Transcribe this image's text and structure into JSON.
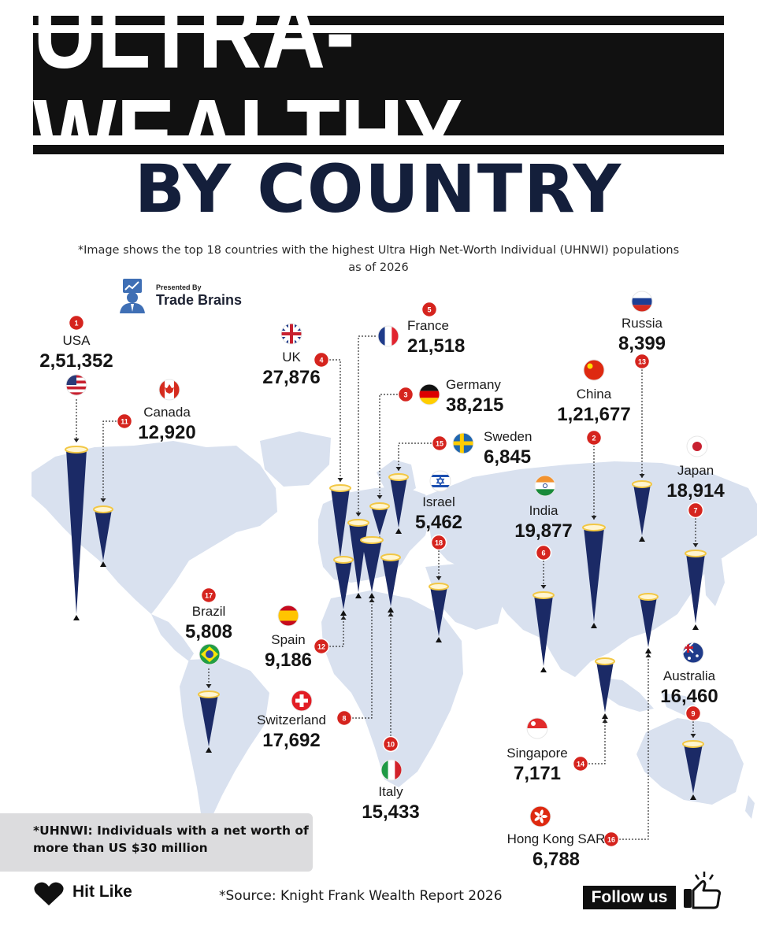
{
  "header": {
    "title": "ULTRA-WEALTHY",
    "subtitle": "BY COUNTRY",
    "note": "*Image shows the top 18 countries with the highest Ultra High Net-Worth Individual (UHNWI) populations as of 2026"
  },
  "brand": {
    "presented_by": "Presented By",
    "name": "Trade Brains"
  },
  "footer": {
    "definition": "*UHNWI: Individuals with a net worth of more than US $30 million",
    "hit_like": "Hit Like",
    "source": "*Source: Knight Frank Wealth Report 2026",
    "follow": "Follow us"
  },
  "colors": {
    "cone": "#1b2a66",
    "cone_rim": "#f2c744",
    "rank_badge": "#d5241e",
    "map": "#d9e1ef",
    "title_bg": "#111111",
    "subtitle": "#141f3b"
  },
  "chart_data": {
    "type": "map",
    "series": [
      {
        "name": "",
        "values": [
          251352,
          121677,
          38215,
          27876,
          21518,
          19877,
          18914,
          17692,
          16460,
          15433,
          12920,
          9186,
          8399,
          7171,
          6845,
          6788,
          5808,
          5462
        ]
      }
    ],
    "countries": [
      {
        "rank": "1",
        "name": "USA",
        "value": 251352,
        "value_label": "2,51,352",
        "flag_icon": "us-flag-icon"
      },
      {
        "rank": "2",
        "name": "China",
        "value": 121677,
        "value_label": "1,21,677",
        "flag_icon": "china-flag-icon"
      },
      {
        "rank": "3",
        "name": "Germany",
        "value": 38215,
        "value_label": "38,215",
        "flag_icon": "germany-flag-icon"
      },
      {
        "rank": "4",
        "name": "UK",
        "value": 27876,
        "value_label": "27,876",
        "flag_icon": "uk-flag-icon"
      },
      {
        "rank": "5",
        "name": "France",
        "value": 21518,
        "value_label": "21,518",
        "flag_icon": "france-flag-icon"
      },
      {
        "rank": "6",
        "name": "India",
        "value": 19877,
        "value_label": "19,877",
        "flag_icon": "india-flag-icon"
      },
      {
        "rank": "7",
        "name": "Japan",
        "value": 18914,
        "value_label": "18,914",
        "flag_icon": "japan-flag-icon"
      },
      {
        "rank": "8",
        "name": "Switzerland",
        "value": 17692,
        "value_label": "17,692",
        "flag_icon": "switzerland-flag-icon"
      },
      {
        "rank": "9",
        "name": "Australia",
        "value": 16460,
        "value_label": "16,460",
        "flag_icon": "australia-flag-icon"
      },
      {
        "rank": "10",
        "name": "Italy",
        "value": 15433,
        "value_label": "15,433",
        "flag_icon": "italy-flag-icon"
      },
      {
        "rank": "11",
        "name": "Canada",
        "value": 12920,
        "value_label": "12,920",
        "flag_icon": "canada-flag-icon"
      },
      {
        "rank": "12",
        "name": "Spain",
        "value": 9186,
        "value_label": "9,186",
        "flag_icon": "spain-flag-icon"
      },
      {
        "rank": "13",
        "name": "Russia",
        "value": 8399,
        "value_label": "8,399",
        "flag_icon": "russia-flag-icon"
      },
      {
        "rank": "14",
        "name": "Singapore",
        "value": 7171,
        "value_label": "7,171",
        "flag_icon": "singapore-flag-icon"
      },
      {
        "rank": "15",
        "name": "Sweden",
        "value": 6845,
        "value_label": "6,845",
        "flag_icon": "sweden-flag-icon"
      },
      {
        "rank": "16",
        "name": "Hong Kong SAR",
        "value": 6788,
        "value_label": "6,788",
        "flag_icon": "hong-kong-flag-icon"
      },
      {
        "rank": "17",
        "name": "Brazil",
        "value": 5808,
        "value_label": "5,808",
        "flag_icon": "brazil-flag-icon"
      },
      {
        "rank": "18",
        "name": "Israel",
        "value": 5462,
        "value_label": "5,462",
        "flag_icon": "israel-flag-icon"
      }
    ]
  }
}
